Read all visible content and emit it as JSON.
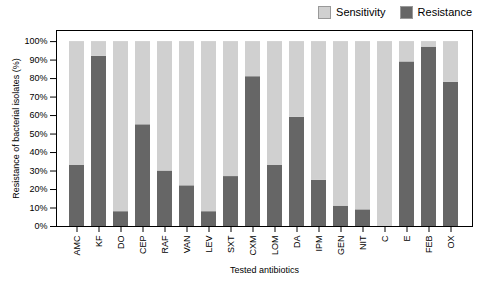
{
  "chart_data": {
    "type": "bar",
    "stacked": true,
    "xlabel": "Tested antibiotics",
    "ylabel": "Resistance of bacterial isolates (%)",
    "categories": [
      "AMC",
      "KF",
      "DO",
      "CEP",
      "RAF",
      "VAN",
      "LEV",
      "SXT",
      "CXM",
      "LOM",
      "DA",
      "IPM",
      "GEN",
      "NIT",
      "C",
      "E",
      "FEB",
      "OX"
    ],
    "series": [
      {
        "name": "Resistance",
        "color": "#666666",
        "values": [
          33,
          92,
          8,
          55,
          30,
          22,
          8,
          27,
          81,
          33,
          59,
          25,
          11,
          9,
          0,
          89,
          97,
          78
        ]
      },
      {
        "name": "Sensitivity",
        "color": "#d0d0d0",
        "values": [
          67,
          8,
          92,
          45,
          70,
          78,
          92,
          73,
          19,
          67,
          41,
          75,
          89,
          91,
          100,
          11,
          3,
          22
        ]
      }
    ],
    "ylim": [
      0,
      106
    ],
    "yticks": [
      {
        "value": 0,
        "label": "0%"
      },
      {
        "value": 10,
        "label": "10%"
      },
      {
        "value": 20,
        "label": "20%"
      },
      {
        "value": 30,
        "label": "30%"
      },
      {
        "value": 40,
        "label": "40%"
      },
      {
        "value": 50,
        "label": "50%"
      },
      {
        "value": 60,
        "label": "60%"
      },
      {
        "value": 70,
        "label": "70%"
      },
      {
        "value": 80,
        "label": "80%"
      },
      {
        "value": 90,
        "label": "90%"
      },
      {
        "value": 100,
        "label": "100%"
      }
    ],
    "grid": false,
    "legend": "upper right"
  }
}
